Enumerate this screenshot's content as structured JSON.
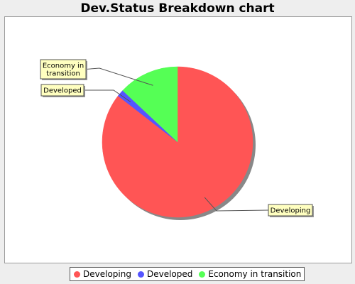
{
  "chart_data": {
    "type": "pie",
    "title": "Dev.Status Breakdown chart",
    "slices": [
      {
        "name": "Developing",
        "value": 85.5,
        "color": "#ff5555",
        "label_lines": [
          "Developing"
        ]
      },
      {
        "name": "Developed",
        "value": 1.5,
        "color": "#5555ff",
        "label_lines": [
          "Developed"
        ]
      },
      {
        "name": "Economy in transition",
        "value": 13.0,
        "color": "#55ff55",
        "label_lines": [
          "Economy in",
          "transition"
        ]
      }
    ],
    "start_angle_deg": 90,
    "direction": "clockwise",
    "legend_position": "bottom"
  }
}
